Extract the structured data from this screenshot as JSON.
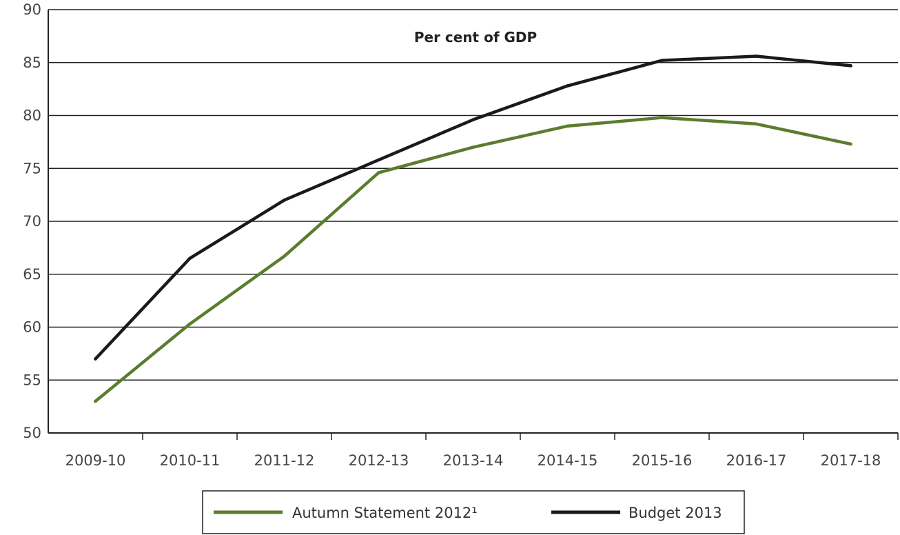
{
  "chart_data": {
    "type": "line",
    "title": "Per cent of GDP",
    "categories": [
      "2009-10",
      "2010-11",
      "2011-12",
      "2012-13",
      "2013-14",
      "2014-15",
      "2015-16",
      "2016-17",
      "2017-18"
    ],
    "ylim": [
      50,
      90
    ],
    "yticks": [
      50,
      55,
      60,
      65,
      70,
      75,
      80,
      85,
      90
    ],
    "grid": true,
    "legend_position": "bottom",
    "series": [
      {
        "name": "Autumn Statement 2012¹",
        "color": "#5a7d2e",
        "values": [
          53.0,
          60.3,
          66.7,
          74.6,
          77.0,
          79.0,
          79.8,
          79.2,
          77.3
        ]
      },
      {
        "name": "Budget 2013",
        "color": "#1a1a1a",
        "values": [
          57.0,
          66.5,
          72.0,
          75.8,
          79.6,
          82.8,
          85.2,
          85.6,
          84.7
        ]
      }
    ]
  }
}
